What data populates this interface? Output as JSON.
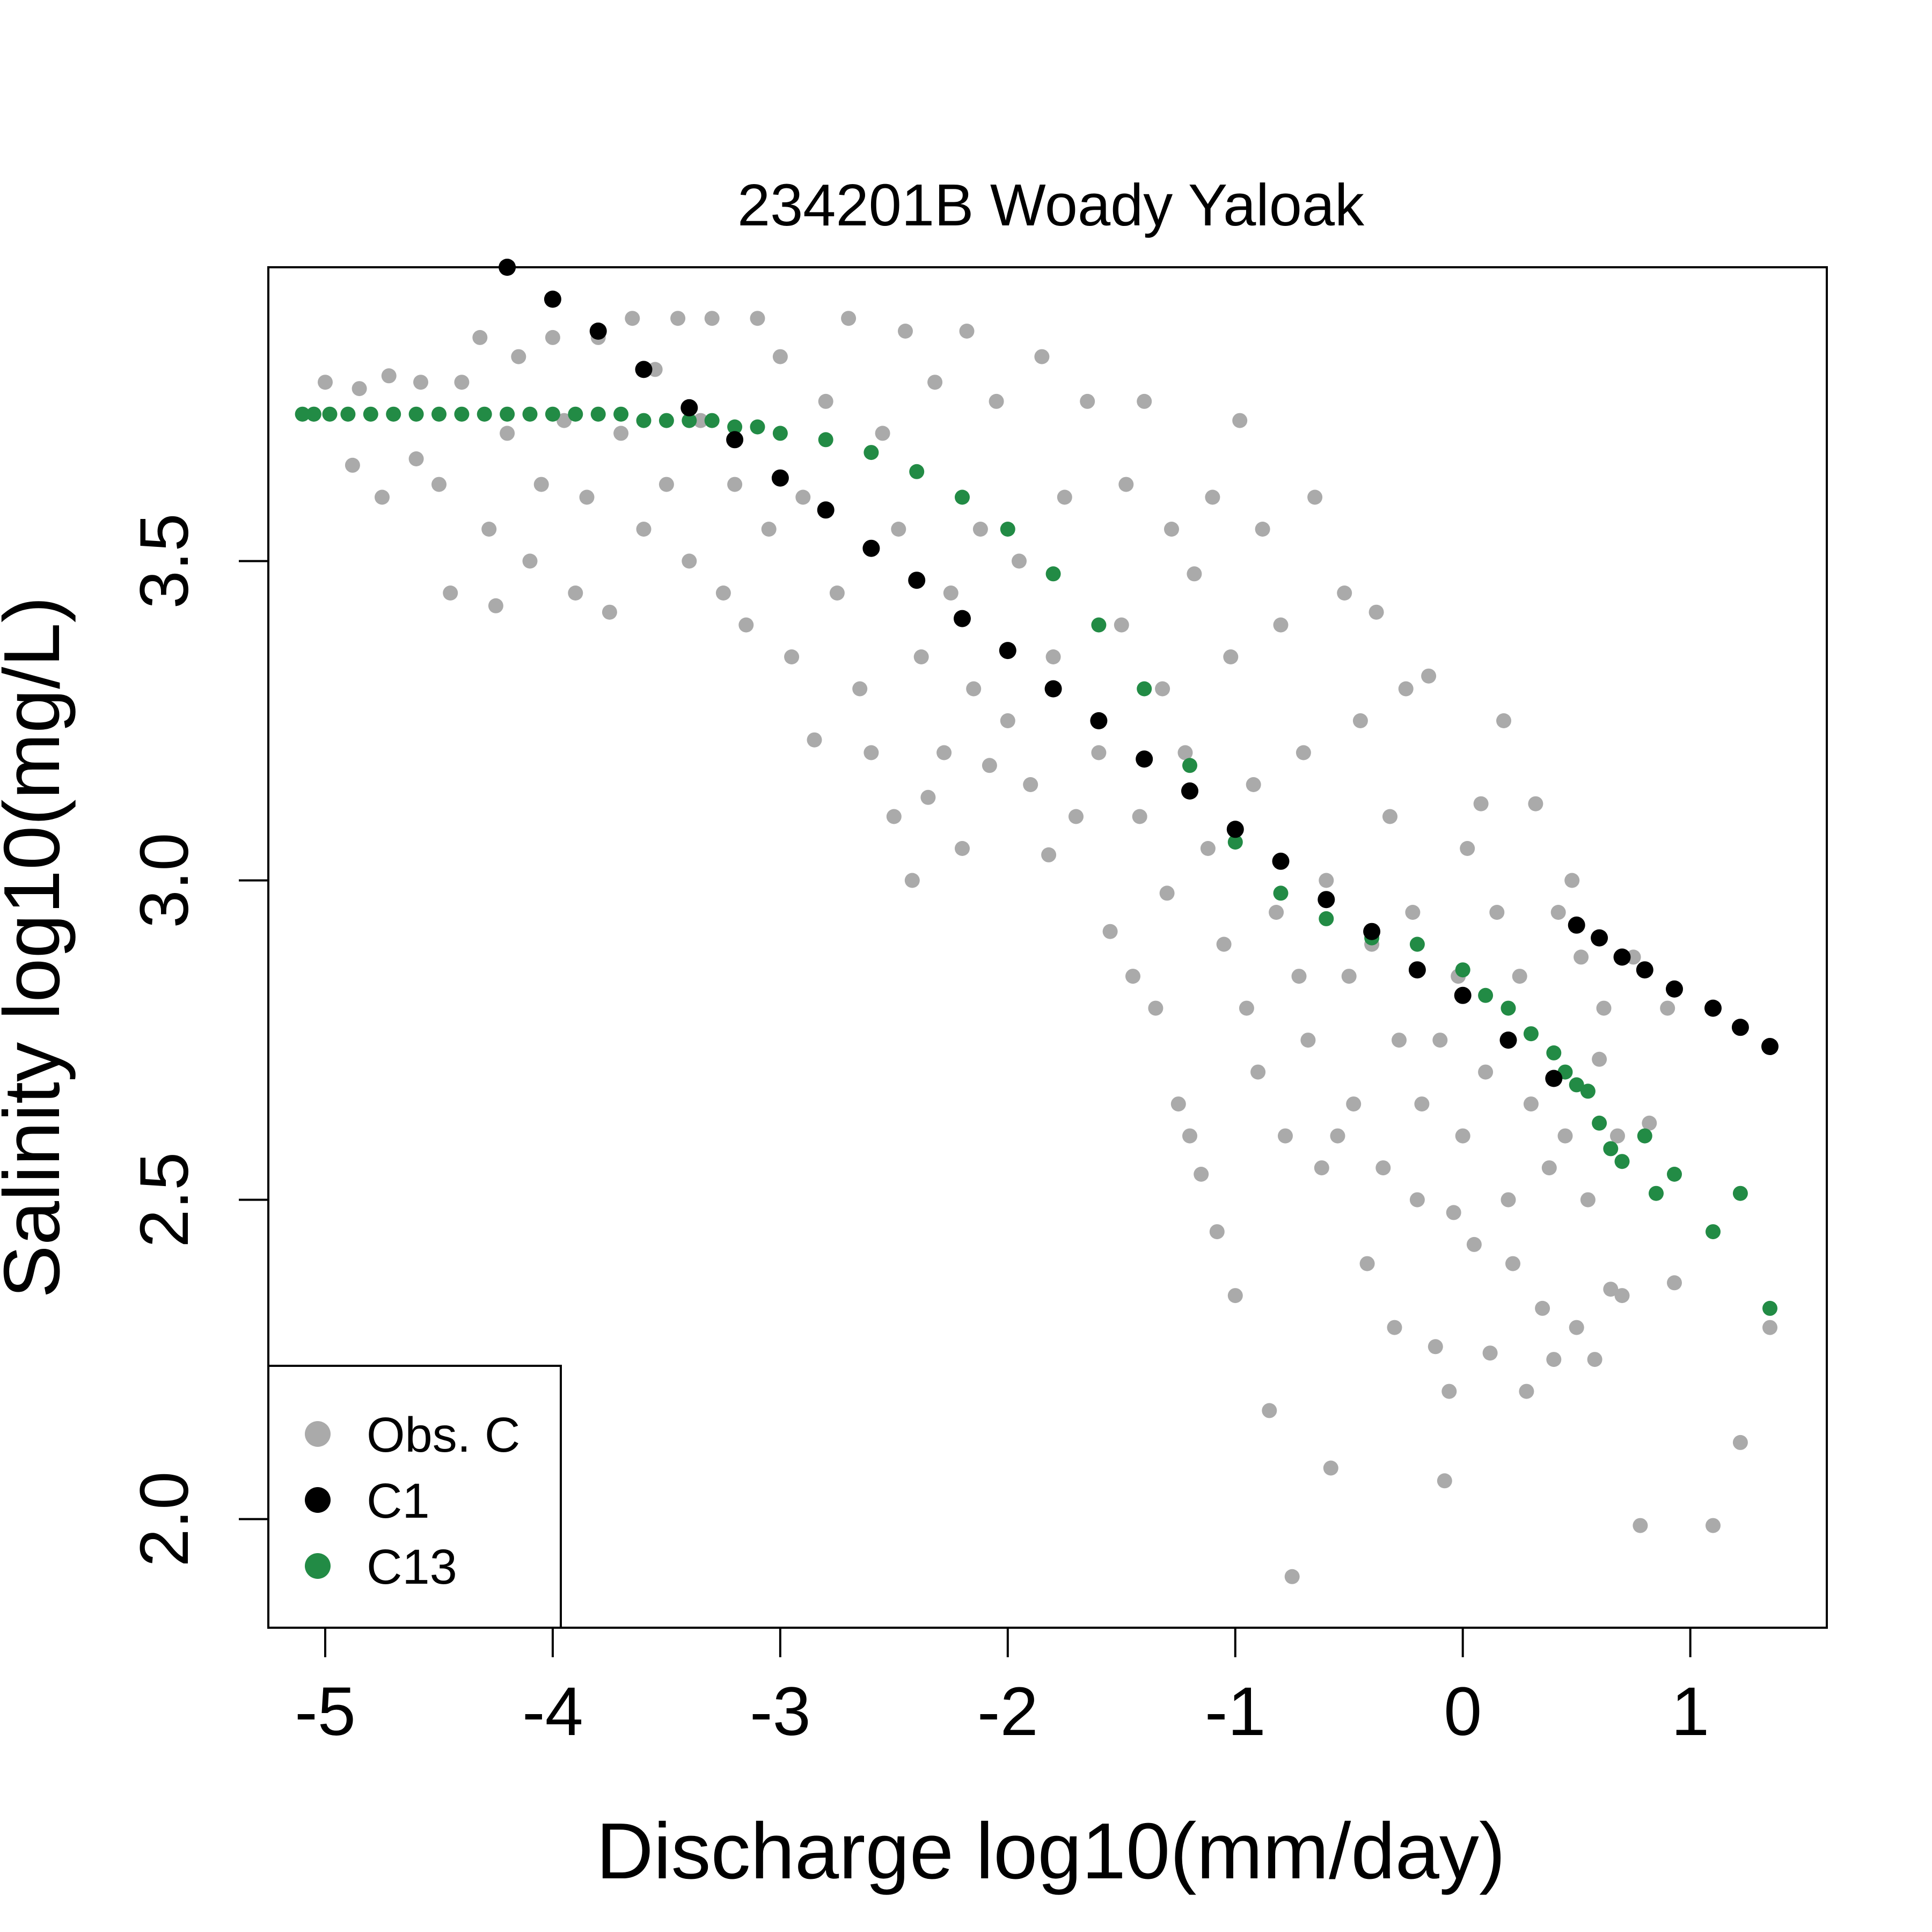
{
  "chart_data": {
    "type": "scatter",
    "title": "234201B Woady Yaloak",
    "xlabel": "Discharge log10(mm/day)",
    "ylabel": "Salinity log10(mg/L)",
    "xlim": [
      -5.25,
      1.6
    ],
    "ylim": [
      1.83,
      3.96
    ],
    "xticks": [
      -5,
      -4,
      -3,
      -2,
      -1,
      0,
      1
    ],
    "yticks": [
      2.0,
      2.5,
      3.0,
      3.5
    ],
    "grid": false,
    "legend_position": "bottom-left",
    "series": [
      {
        "name": "Obs. C",
        "color": "#aaaaaa",
        "points": [
          [
            -5.05,
            3.73
          ],
          [
            -5.0,
            3.78
          ],
          [
            -4.88,
            3.65
          ],
          [
            -4.85,
            3.77
          ],
          [
            -4.75,
            3.6
          ],
          [
            -4.72,
            3.79
          ],
          [
            -4.6,
            3.66
          ],
          [
            -4.58,
            3.78
          ],
          [
            -4.5,
            3.62
          ],
          [
            -4.45,
            3.45
          ],
          [
            -4.4,
            3.78
          ],
          [
            -4.32,
            3.85
          ],
          [
            -4.28,
            3.55
          ],
          [
            -4.25,
            3.43
          ],
          [
            -4.2,
            3.7
          ],
          [
            -4.15,
            3.82
          ],
          [
            -4.1,
            3.5
          ],
          [
            -4.05,
            3.62
          ],
          [
            -4.0,
            3.85
          ],
          [
            -3.95,
            3.72
          ],
          [
            -3.9,
            3.45
          ],
          [
            -3.85,
            3.6
          ],
          [
            -3.8,
            3.85
          ],
          [
            -3.75,
            3.42
          ],
          [
            -3.7,
            3.7
          ],
          [
            -3.65,
            3.88
          ],
          [
            -3.6,
            3.55
          ],
          [
            -3.55,
            3.8
          ],
          [
            -3.5,
            3.62
          ],
          [
            -3.45,
            3.88
          ],
          [
            -3.4,
            3.5
          ],
          [
            -3.35,
            3.72
          ],
          [
            -3.3,
            3.88
          ],
          [
            -3.25,
            3.45
          ],
          [
            -3.2,
            3.62
          ],
          [
            -3.15,
            3.4
          ],
          [
            -3.1,
            3.88
          ],
          [
            -3.05,
            3.55
          ],
          [
            -3.0,
            3.82
          ],
          [
            -2.95,
            3.35
          ],
          [
            -2.9,
            3.6
          ],
          [
            -2.85,
            3.22
          ],
          [
            -2.8,
            3.75
          ],
          [
            -2.75,
            3.45
          ],
          [
            -2.7,
            3.88
          ],
          [
            -2.65,
            3.3
          ],
          [
            -2.6,
            3.2
          ],
          [
            -2.55,
            3.7
          ],
          [
            -2.5,
            3.1
          ],
          [
            -2.48,
            3.55
          ],
          [
            -2.45,
            3.86
          ],
          [
            -2.42,
            3.0
          ],
          [
            -2.38,
            3.35
          ],
          [
            -2.35,
            3.13
          ],
          [
            -2.32,
            3.78
          ],
          [
            -2.28,
            3.2
          ],
          [
            -2.25,
            3.45
          ],
          [
            -2.2,
            3.05
          ],
          [
            -2.18,
            3.86
          ],
          [
            -2.15,
            3.3
          ],
          [
            -2.12,
            3.55
          ],
          [
            -2.08,
            3.18
          ],
          [
            -2.05,
            3.75
          ],
          [
            -2.0,
            3.25
          ],
          [
            -1.95,
            3.5
          ],
          [
            -1.9,
            3.15
          ],
          [
            -1.85,
            3.82
          ],
          [
            -1.82,
            3.04
          ],
          [
            -1.8,
            3.35
          ],
          [
            -1.75,
            3.6
          ],
          [
            -1.7,
            3.1
          ],
          [
            -1.65,
            3.75
          ],
          [
            -1.6,
            3.2
          ],
          [
            -1.55,
            2.92
          ],
          [
            -1.5,
            3.4
          ],
          [
            -1.48,
            3.62
          ],
          [
            -1.45,
            2.85
          ],
          [
            -1.42,
            3.1
          ],
          [
            -1.4,
            3.75
          ],
          [
            -1.35,
            2.8
          ],
          [
            -1.32,
            3.3
          ],
          [
            -1.3,
            2.98
          ],
          [
            -1.28,
            3.55
          ],
          [
            -1.25,
            2.65
          ],
          [
            -1.22,
            3.2
          ],
          [
            -1.2,
            2.6
          ],
          [
            -1.18,
            3.48
          ],
          [
            -1.15,
            2.54
          ],
          [
            -1.12,
            3.05
          ],
          [
            -1.1,
            3.6
          ],
          [
            -1.08,
            2.45
          ],
          [
            -1.05,
            2.9
          ],
          [
            -1.02,
            3.35
          ],
          [
            -1.0,
            2.35
          ],
          [
            -0.98,
            3.72
          ],
          [
            -0.95,
            2.8
          ],
          [
            -0.92,
            3.15
          ],
          [
            -0.9,
            2.7
          ],
          [
            -0.88,
            3.55
          ],
          [
            -0.85,
            2.17
          ],
          [
            -0.82,
            2.95
          ],
          [
            -0.8,
            3.4
          ],
          [
            -0.78,
            2.6
          ],
          [
            -0.75,
            1.91
          ],
          [
            -0.72,
            2.85
          ],
          [
            -0.7,
            3.2
          ],
          [
            -0.68,
            2.75
          ],
          [
            -0.65,
            3.6
          ],
          [
            -0.62,
            2.55
          ],
          [
            -0.6,
            3.0
          ],
          [
            -0.58,
            2.08
          ],
          [
            -0.55,
            2.6
          ],
          [
            -0.52,
            3.45
          ],
          [
            -0.5,
            2.85
          ],
          [
            -0.48,
            2.65
          ],
          [
            -0.45,
            3.25
          ],
          [
            -0.42,
            2.4
          ],
          [
            -0.4,
            2.9
          ],
          [
            -0.38,
            3.42
          ],
          [
            -0.35,
            2.55
          ],
          [
            -0.32,
            3.1
          ],
          [
            -0.3,
            2.3
          ],
          [
            -0.28,
            2.75
          ],
          [
            -0.25,
            3.3
          ],
          [
            -0.22,
            2.95
          ],
          [
            -0.2,
            2.5
          ],
          [
            -0.18,
            2.65
          ],
          [
            -0.15,
            3.32
          ],
          [
            -0.12,
            2.27
          ],
          [
            -0.1,
            2.75
          ],
          [
            -0.08,
            2.06
          ],
          [
            -0.06,
            2.2
          ],
          [
            -0.04,
            2.48
          ],
          [
            -0.02,
            2.85
          ],
          [
            0.0,
            2.6
          ],
          [
            0.02,
            3.05
          ],
          [
            0.05,
            2.43
          ],
          [
            0.08,
            3.12
          ],
          [
            0.1,
            2.7
          ],
          [
            0.12,
            2.26
          ],
          [
            0.15,
            2.95
          ],
          [
            0.18,
            3.25
          ],
          [
            0.2,
            2.5
          ],
          [
            0.22,
            2.4
          ],
          [
            0.25,
            2.85
          ],
          [
            0.28,
            2.2
          ],
          [
            0.3,
            2.65
          ],
          [
            0.32,
            3.12
          ],
          [
            0.35,
            2.33
          ],
          [
            0.38,
            2.55
          ],
          [
            0.4,
            2.25
          ],
          [
            0.42,
            2.95
          ],
          [
            0.45,
            2.6
          ],
          [
            0.48,
            3.0
          ],
          [
            0.5,
            2.3
          ],
          [
            0.52,
            2.88
          ],
          [
            0.55,
            2.5
          ],
          [
            0.58,
            2.25
          ],
          [
            0.6,
            2.72
          ],
          [
            0.62,
            2.8
          ],
          [
            0.65,
            2.36
          ],
          [
            0.68,
            2.6
          ],
          [
            0.7,
            2.35
          ],
          [
            0.75,
            2.88
          ],
          [
            0.78,
            1.99
          ],
          [
            0.82,
            2.62
          ],
          [
            0.9,
            2.8
          ],
          [
            0.93,
            2.37
          ],
          [
            1.1,
            1.99
          ],
          [
            1.22,
            2.12
          ],
          [
            1.35,
            2.3
          ]
        ]
      },
      {
        "name": "C1",
        "color": "#000000",
        "points": [
          [
            -4.2,
            3.96
          ],
          [
            -4.0,
            3.91
          ],
          [
            -3.8,
            3.86
          ],
          [
            -3.6,
            3.8
          ],
          [
            -3.4,
            3.74
          ],
          [
            -3.2,
            3.69
          ],
          [
            -3.0,
            3.63
          ],
          [
            -2.8,
            3.58
          ],
          [
            -2.6,
            3.52
          ],
          [
            -2.4,
            3.47
          ],
          [
            -2.2,
            3.41
          ],
          [
            -2.0,
            3.36
          ],
          [
            -1.8,
            3.3
          ],
          [
            -1.6,
            3.25
          ],
          [
            -1.4,
            3.19
          ],
          [
            -1.2,
            3.14
          ],
          [
            -1.0,
            3.08
          ],
          [
            -0.8,
            3.03
          ],
          [
            -0.6,
            2.97
          ],
          [
            -0.4,
            2.92
          ],
          [
            -0.2,
            2.86
          ],
          [
            0.0,
            2.82
          ],
          [
            0.2,
            2.75
          ],
          [
            0.4,
            2.69
          ],
          [
            0.5,
            2.93
          ],
          [
            0.6,
            2.91
          ],
          [
            0.7,
            2.88
          ],
          [
            0.8,
            2.86
          ],
          [
            0.93,
            2.83
          ],
          [
            1.1,
            2.8
          ],
          [
            1.22,
            2.77
          ],
          [
            1.35,
            2.74
          ]
        ]
      },
      {
        "name": "C13",
        "color": "#228b45",
        "points": [
          [
            -5.1,
            3.73
          ],
          [
            -5.05,
            3.73
          ],
          [
            -4.98,
            3.73
          ],
          [
            -4.9,
            3.73
          ],
          [
            -4.8,
            3.73
          ],
          [
            -4.7,
            3.73
          ],
          [
            -4.6,
            3.73
          ],
          [
            -4.5,
            3.73
          ],
          [
            -4.4,
            3.73
          ],
          [
            -4.3,
            3.73
          ],
          [
            -4.2,
            3.73
          ],
          [
            -4.1,
            3.73
          ],
          [
            -4.0,
            3.73
          ],
          [
            -3.9,
            3.73
          ],
          [
            -3.8,
            3.73
          ],
          [
            -3.7,
            3.73
          ],
          [
            -3.6,
            3.72
          ],
          [
            -3.5,
            3.72
          ],
          [
            -3.4,
            3.72
          ],
          [
            -3.3,
            3.72
          ],
          [
            -3.2,
            3.71
          ],
          [
            -3.1,
            3.71
          ],
          [
            -3.0,
            3.7
          ],
          [
            -2.8,
            3.69
          ],
          [
            -2.6,
            3.67
          ],
          [
            -2.4,
            3.64
          ],
          [
            -2.2,
            3.6
          ],
          [
            -2.0,
            3.55
          ],
          [
            -1.8,
            3.48
          ],
          [
            -1.6,
            3.4
          ],
          [
            -1.4,
            3.3
          ],
          [
            -1.2,
            3.18
          ],
          [
            -1.0,
            3.06
          ],
          [
            -0.8,
            2.98
          ],
          [
            -0.6,
            2.94
          ],
          [
            -0.4,
            2.91
          ],
          [
            -0.2,
            2.9
          ],
          [
            0.0,
            2.86
          ],
          [
            0.1,
            2.82
          ],
          [
            0.2,
            2.8
          ],
          [
            0.3,
            2.76
          ],
          [
            0.4,
            2.73
          ],
          [
            0.45,
            2.7
          ],
          [
            0.5,
            2.68
          ],
          [
            0.55,
            2.67
          ],
          [
            0.6,
            2.62
          ],
          [
            0.65,
            2.58
          ],
          [
            0.7,
            2.56
          ],
          [
            0.8,
            2.6
          ],
          [
            0.85,
            2.51
          ],
          [
            0.93,
            2.54
          ],
          [
            1.1,
            2.45
          ],
          [
            1.22,
            2.51
          ],
          [
            1.35,
            2.33
          ]
        ]
      }
    ]
  }
}
